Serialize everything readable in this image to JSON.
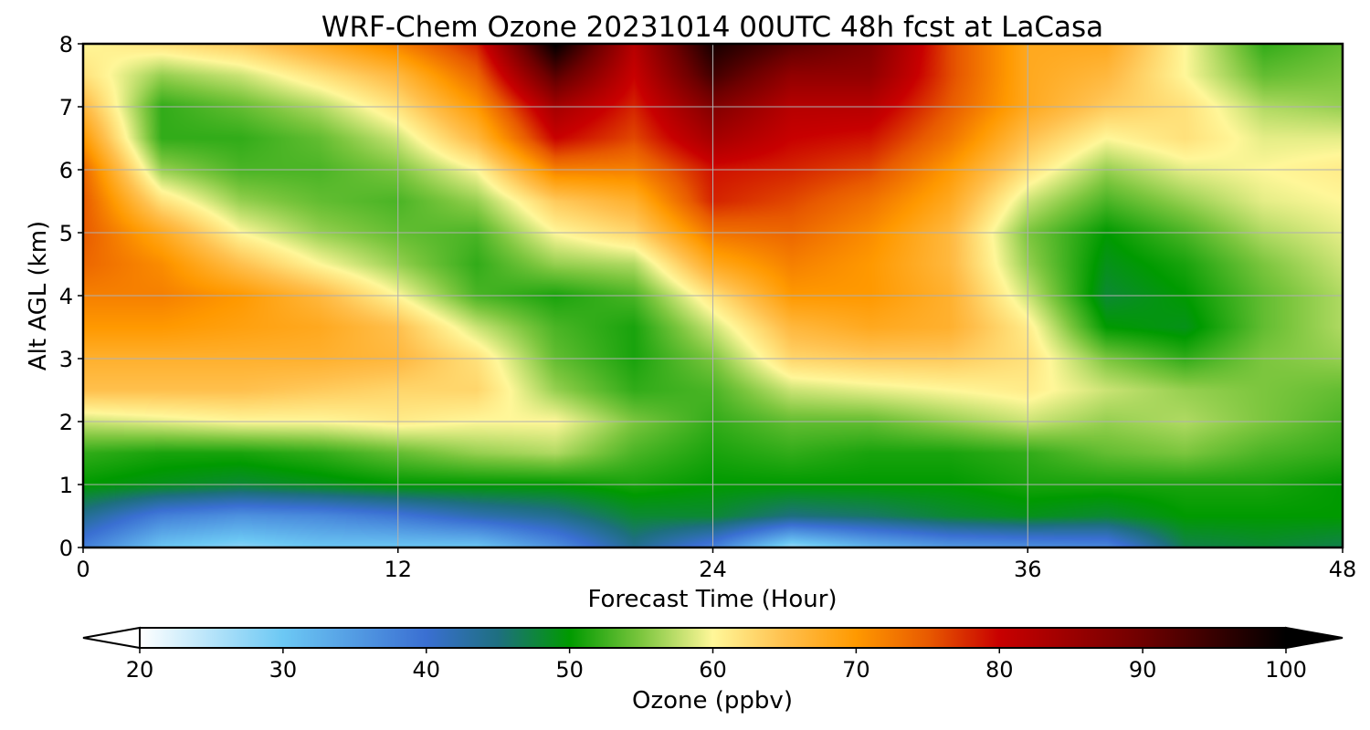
{
  "chart_data": {
    "type": "heatmap",
    "title": "WRF-Chem Ozone  20231014 00UTC 48h fcst at LaCasa",
    "xlabel": "Forecast Time (Hour)",
    "ylabel": "Alt AGL (km)",
    "xlim": [
      0,
      48
    ],
    "ylim": [
      0,
      8
    ],
    "x_ticks": [
      "0",
      "12",
      "24",
      "36",
      "48"
    ],
    "y_ticks": [
      "0",
      "1",
      "2",
      "3",
      "4",
      "5",
      "6",
      "7",
      "8"
    ],
    "grid": true,
    "x": [
      0,
      3,
      6,
      9,
      12,
      15,
      18,
      21,
      24,
      27,
      30,
      33,
      36,
      39,
      42,
      45,
      48
    ],
    "y": [
      0,
      0.5,
      1,
      1.5,
      2,
      2.5,
      3,
      3.5,
      4,
      4.5,
      5,
      5.5,
      6,
      6.5,
      7,
      7.5,
      8
    ],
    "z_rows_by_altitude": [
      [
        38,
        30,
        28,
        30,
        30,
        30,
        36,
        44,
        38,
        27,
        32,
        35,
        36,
        37,
        47,
        48,
        47
      ],
      [
        44,
        38,
        36,
        37,
        39,
        42,
        44,
        48,
        48,
        45,
        46,
        48,
        49,
        48,
        50,
        50,
        50
      ],
      [
        50,
        49,
        48,
        49,
        50,
        50,
        50,
        51,
        50,
        50,
        50,
        50,
        51,
        51,
        51,
        51,
        50
      ],
      [
        52,
        51,
        51,
        52,
        54,
        56,
        57,
        53,
        51,
        52,
        51,
        51,
        52,
        54,
        55,
        53,
        52
      ],
      [
        58,
        59,
        60,
        60,
        61,
        60,
        60,
        55,
        52,
        54,
        54,
        56,
        58,
        56,
        57,
        55,
        53
      ],
      [
        65,
        65,
        65,
        64,
        63,
        63,
        56,
        52,
        53,
        58,
        59,
        60,
        61,
        58,
        56,
        55,
        54
      ],
      [
        67,
        67,
        67,
        67,
        66,
        62,
        54,
        51,
        55,
        63,
        64,
        64,
        62,
        55,
        52,
        55,
        56
      ],
      [
        70,
        70,
        69,
        68,
        65,
        58,
        53,
        51,
        58,
        66,
        68,
        67,
        61,
        50,
        49,
        54,
        57
      ],
      [
        72,
        72,
        70,
        66,
        60,
        53,
        51,
        53,
        62,
        70,
        70,
        67,
        58,
        48,
        50,
        54,
        57
      ],
      [
        74,
        71,
        65,
        60,
        56,
        52,
        56,
        57,
        68,
        72,
        70,
        66,
        56,
        49,
        51,
        55,
        58
      ],
      [
        75,
        68,
        60,
        56,
        54,
        53,
        60,
        63,
        73,
        74,
        71,
        66,
        55,
        50,
        53,
        57,
        59
      ],
      [
        75,
        62,
        56,
        54,
        53,
        56,
        64,
        67,
        78,
        76,
        73,
        68,
        58,
        53,
        56,
        59,
        60
      ],
      [
        74,
        56,
        53,
        53,
        55,
        60,
        72,
        72,
        79,
        78,
        76,
        70,
        62,
        56,
        59,
        60,
        61
      ],
      [
        70,
        52,
        52,
        54,
        58,
        66,
        80,
        76,
        84,
        80,
        79,
        73,
        65,
        60,
        62,
        59,
        59
      ],
      [
        66,
        52,
        54,
        57,
        62,
        70,
        84,
        78,
        88,
        82,
        82,
        75,
        68,
        64,
        62,
        57,
        56
      ],
      [
        62,
        56,
        58,
        62,
        66,
        74,
        92,
        80,
        94,
        86,
        86,
        76,
        68,
        66,
        60,
        54,
        55
      ],
      [
        60,
        62,
        64,
        68,
        72,
        78,
        100,
        82,
        98,
        92,
        88,
        76,
        68,
        68,
        60,
        52,
        54
      ]
    ],
    "colorbar": {
      "label": "Ozone  (ppbv)",
      "min": 20,
      "max": 100,
      "ticks": [
        "20",
        "30",
        "40",
        "50",
        "60",
        "70",
        "80",
        "90",
        "100"
      ],
      "extend": "both",
      "stops": [
        {
          "v": 20,
          "c": "#ffffff"
        },
        {
          "v": 30,
          "c": "#6cc8f4"
        },
        {
          "v": 40,
          "c": "#3a6fd2"
        },
        {
          "v": 45,
          "c": "#1e6f80"
        },
        {
          "v": 50,
          "c": "#009a00"
        },
        {
          "v": 55,
          "c": "#7cc63e"
        },
        {
          "v": 60,
          "c": "#fff799"
        },
        {
          "v": 65,
          "c": "#ffc04d"
        },
        {
          "v": 70,
          "c": "#ff9900"
        },
        {
          "v": 75,
          "c": "#e85a00"
        },
        {
          "v": 80,
          "c": "#c80000"
        },
        {
          "v": 90,
          "c": "#6e0000"
        },
        {
          "v": 100,
          "c": "#000000"
        }
      ]
    }
  }
}
